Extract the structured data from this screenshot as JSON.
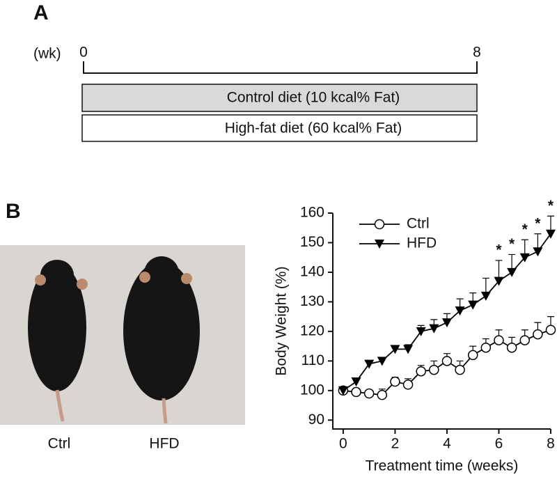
{
  "panel_a": {
    "label": "A",
    "unit": "(wk)",
    "start": 0,
    "end": 8,
    "diets": [
      "Control diet (10 kcal% Fat)",
      "High-fat diet (60 kcal% Fat)"
    ]
  },
  "panel_b": {
    "label": "B",
    "photo_labels": [
      "Ctrl",
      "HFD"
    ]
  },
  "chart_data": {
    "type": "line",
    "xlabel": "Treatment time (weeks)",
    "ylabel": "Body Weight (%)",
    "x": [
      0,
      0.5,
      1,
      1.5,
      2,
      2.5,
      3,
      3.5,
      4,
      4.5,
      5,
      5.5,
      6,
      6.5,
      7,
      7.5,
      8
    ],
    "series": [
      {
        "name": "Ctrl",
        "color": "#000000",
        "marker": "circle-open",
        "values": [
          100,
          99.5,
          99,
          98.5,
          103,
          102,
          106.5,
          107,
          110,
          107,
          112,
          114.5,
          117,
          114.5,
          117,
          119,
          120.5
        ],
        "errors": [
          1,
          1,
          1,
          2,
          1.5,
          2,
          2,
          3,
          2.5,
          3,
          3,
          3,
          3.5,
          3.5,
          3.5,
          4,
          4.5
        ]
      },
      {
        "name": "HFD",
        "color": "#000000",
        "marker": "triangle-down",
        "values": [
          100,
          103,
          109,
          110,
          114,
          114,
          120,
          121,
          123,
          127,
          129,
          132,
          137,
          140,
          145,
          147,
          153
        ],
        "errors": [
          1,
          1,
          1,
          1,
          1,
          1.5,
          2,
          3,
          3,
          4,
          4,
          6,
          7,
          6,
          6,
          6,
          6
        ]
      }
    ],
    "xlim": [
      -0.4,
      8
    ],
    "ylim": [
      87,
      160
    ],
    "xticks": [
      0,
      2,
      4,
      6,
      8
    ],
    "yticks": [
      90,
      100,
      110,
      120,
      130,
      140,
      150,
      160
    ],
    "legend": "upper left",
    "annotations": [
      {
        "x": 6,
        "text": "*"
      },
      {
        "x": 6.5,
        "text": "*"
      },
      {
        "x": 7,
        "text": "*"
      },
      {
        "x": 7.5,
        "text": "*"
      },
      {
        "x": 8,
        "text": "*"
      }
    ]
  }
}
